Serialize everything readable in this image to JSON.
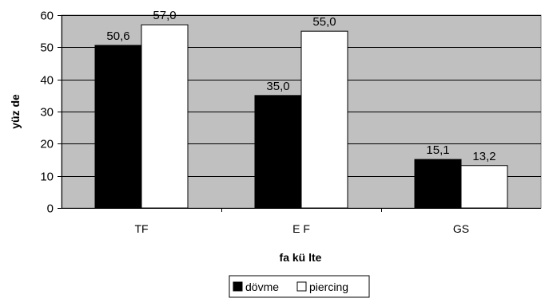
{
  "chart_data": {
    "type": "bar",
    "categories": [
      "TF",
      "E F",
      "GS"
    ],
    "series": [
      {
        "name": "dövme",
        "values": [
          50.6,
          35.0,
          15.1
        ],
        "labels": [
          "50,6",
          "35,0",
          "15,1"
        ],
        "color": "#000000"
      },
      {
        "name": "piercing",
        "values": [
          57.0,
          55.0,
          13.2
        ],
        "labels": [
          "57,0",
          "55,0",
          "13,2"
        ],
        "color": "#ffffff"
      }
    ],
    "title": "",
    "xlabel": "fa kü lte",
    "ylabel": "yüz de",
    "ylim": [
      0,
      60
    ],
    "yticks": [
      0,
      10,
      20,
      30,
      40,
      50,
      60
    ],
    "grid": true,
    "plot_background": "#c0c0c0",
    "legend_position": "bottom"
  }
}
